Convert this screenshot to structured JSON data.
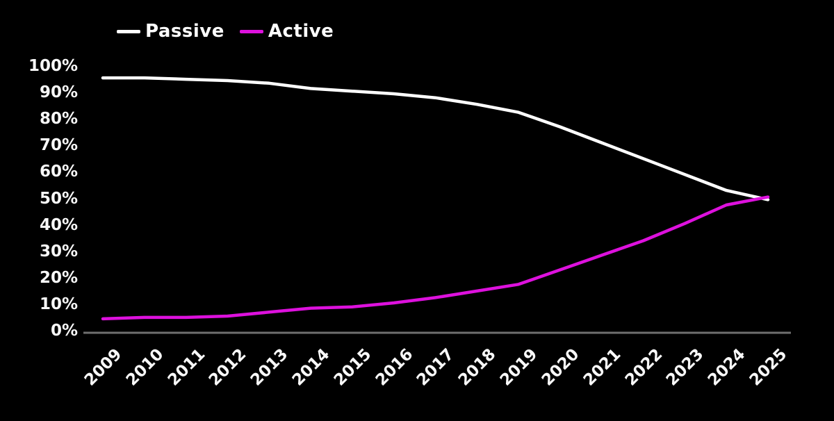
{
  "legend": {
    "items": [
      {
        "label": "Passive",
        "color": "#ffffff"
      },
      {
        "label": "Active",
        "color": "#dd11dd"
      }
    ]
  },
  "axes": {
    "y_tick_labels": [
      "100%",
      "90%",
      "80%",
      "70%",
      "60%",
      "50%",
      "40%",
      "30%",
      "20%",
      "10%",
      "0%"
    ],
    "x_tick_labels": [
      "2009",
      "2010",
      "2011",
      "2012",
      "2013",
      "2014",
      "2015",
      "2016",
      "2017",
      "2018",
      "2019",
      "2020",
      "2021",
      "2022",
      "2023",
      "2024",
      "2025"
    ],
    "axis_line_color": "#6f6f6f",
    "tick_label_color": "#f8f8f8"
  },
  "chart_data": {
    "type": "line",
    "title": "",
    "xlabel": "",
    "ylabel": "",
    "x": [
      2009,
      2010,
      2011,
      2012,
      2013,
      2014,
      2015,
      2016,
      2017,
      2018,
      2019,
      2020,
      2021,
      2022,
      2023,
      2024,
      2025
    ],
    "series": [
      {
        "name": "Passive",
        "color": "#ffffff",
        "values": [
          95.5,
          95.5,
          95,
          94.5,
          93.5,
          91.5,
          90.5,
          89.5,
          88,
          85.5,
          82.5,
          77,
          71,
          65,
          59,
          53,
          49.5
        ]
      },
      {
        "name": "Active",
        "color": "#dd11dd",
        "values": [
          4.5,
          5,
          5,
          5.5,
          7,
          8.5,
          9,
          10.5,
          12.5,
          15,
          17.5,
          23,
          28.5,
          34,
          40.5,
          47.5,
          50.5
        ]
      }
    ],
    "ylim": [
      0,
      100
    ],
    "y_tick_step": 10,
    "grid": false,
    "legend_position": "top-left",
    "background": "#000000"
  }
}
